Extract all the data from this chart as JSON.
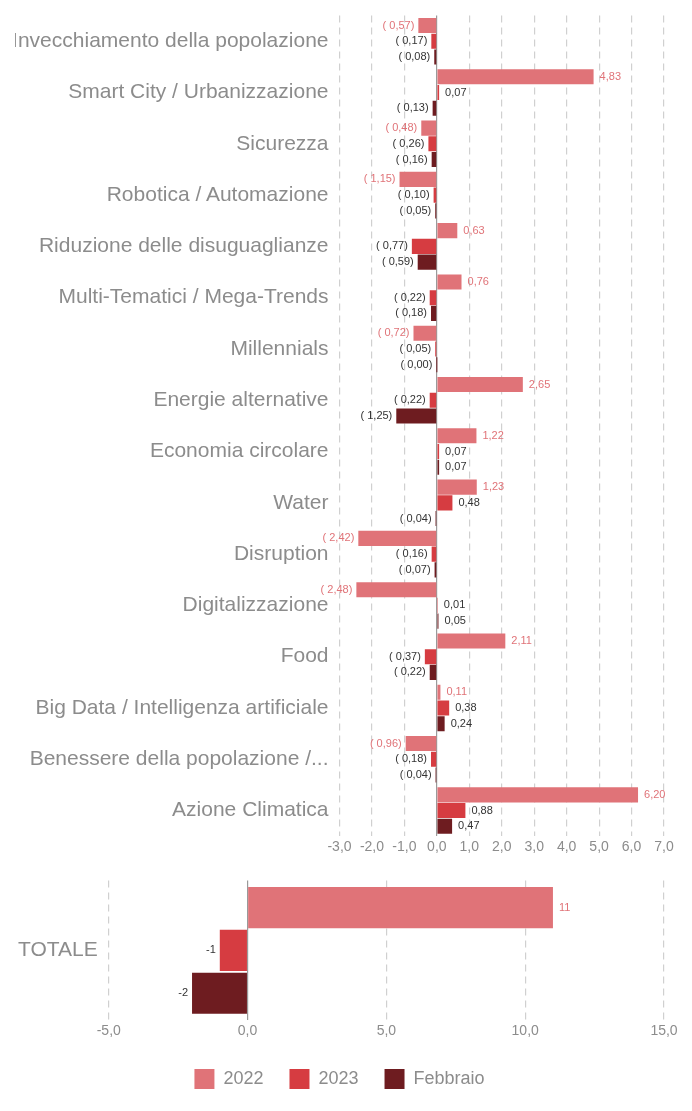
{
  "chart_data": [
    {
      "type": "bar",
      "orientation": "horizontal",
      "categories": [
        "Invecchiamento della popolazione",
        "Smart City / Urbanizzazione",
        "Sicurezza",
        "Robotica / Automazione",
        "Riduzione delle disuguaglianze",
        "Multi-Tematici / Mega-Trends",
        "Millennials",
        "Energie alternative",
        "Economia circolare",
        "Water",
        "Disruption",
        "Digitalizzazione",
        "Food",
        "Big Data / Intelligenza artificiale",
        "Benessere della popolazione /...",
        "Azione Climatica"
      ],
      "series": [
        {
          "color": "#e07378",
          "values": [
            -0.57,
            4.83,
            -0.48,
            -1.15,
            0.63,
            0.76,
            -0.72,
            2.65,
            1.22,
            1.23,
            -2.42,
            -2.48,
            2.11,
            0.11,
            -0.96,
            6.2
          ],
          "value_labels": [
            "( 0,57)",
            "4,83",
            "( 0,48)",
            "( 1,15)",
            "0,63",
            "0,76",
            "( 0,72)",
            "2,65",
            "1,22",
            "1,23",
            "( 2,42)",
            "( 2,48)",
            "2,11",
            "0,11",
            "( 0,96)",
            "6,20"
          ]
        },
        {
          "color": "#d63c41",
          "values": [
            -0.17,
            0.07,
            -0.26,
            -0.1,
            -0.77,
            -0.22,
            -0.05,
            -0.22,
            0.07,
            0.48,
            -0.16,
            0.01,
            -0.37,
            0.38,
            -0.18,
            0.88
          ],
          "value_labels": [
            "( 0,17)",
            "0,07",
            "( 0,26)",
            "( 0,10)",
            "( 0,77)",
            "( 0,22)",
            "( 0,05)",
            "( 0,22)",
            "0,07",
            "0,48",
            "( 0,16)",
            "0,01",
            "( 0,37)",
            "0,38",
            "( 0,18)",
            "0,88"
          ]
        },
        {
          "color": "#6e1c20",
          "values": [
            -0.08,
            -0.13,
            -0.16,
            -0.05,
            -0.59,
            -0.18,
            0,
            -1.25,
            0.07,
            -0.04,
            -0.07,
            0.05,
            -0.22,
            0.24,
            -0.04,
            0.47
          ],
          "value_labels": [
            "( 0,08)",
            "( 0,13)",
            "( 0,16)",
            "( 0,05)",
            "( 0,59)",
            "( 0,18)",
            "( 0,00)",
            "( 1,25)",
            "0,07",
            "( 0,04)",
            "( 0,07)",
            "0,05",
            "( 0,22)",
            "0,24",
            "( 0,04)",
            "0,47"
          ]
        }
      ],
      "xlim": [
        -3,
        7
      ],
      "xticks": [
        {
          "value": -3,
          "label": "-3,0"
        },
        {
          "value": -2,
          "label": "-2,0"
        },
        {
          "value": -1,
          "label": "-1,0"
        },
        {
          "value": 0,
          "label": "0,0"
        },
        {
          "value": 1,
          "label": "1,0"
        },
        {
          "value": 2,
          "label": "2,0"
        },
        {
          "value": 3,
          "label": "3,0"
        },
        {
          "value": 4,
          "label": "4,0"
        },
        {
          "value": 5,
          "label": "5,0"
        },
        {
          "value": 6,
          "label": "6,0"
        },
        {
          "value": 7,
          "label": "7,0"
        }
      ],
      "grid": "x"
    },
    {
      "type": "bar",
      "orientation": "horizontal",
      "categories": [
        "TOTALE"
      ],
      "series": [
        {
          "name": "2022",
          "color": "#e07378",
          "values": [
            11
          ],
          "value_labels": [
            "11"
          ]
        },
        {
          "name": "2023",
          "color": "#d63c41",
          "values": [
            -1
          ],
          "value_labels": [
            "-1"
          ]
        },
        {
          "name": "Febbraio",
          "color": "#6e1c20",
          "values": [
            -2
          ],
          "value_labels": [
            "-2"
          ]
        }
      ],
      "xlim": [
        -5,
        15
      ],
      "xticks": [
        {
          "value": -5,
          "label": "-5,0"
        },
        {
          "value": 0,
          "label": "0,0"
        },
        {
          "value": 5,
          "label": "5,0"
        },
        {
          "value": 10,
          "label": "10,0"
        },
        {
          "value": 15,
          "label": "15,0"
        }
      ],
      "grid": "x",
      "legend": "bottom"
    }
  ]
}
